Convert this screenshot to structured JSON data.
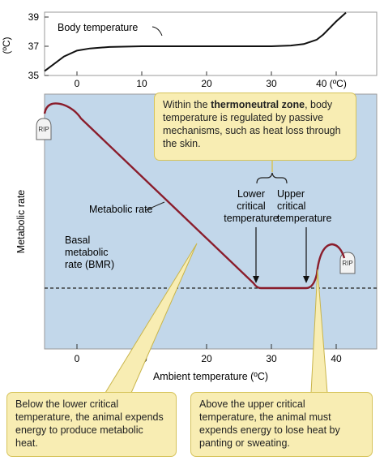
{
  "top_chart": {
    "y_unit": "(ºC)",
    "y_ticks": [
      "39",
      "37",
      "35"
    ],
    "x_ticks": [
      "0",
      "10",
      "20",
      "30",
      "40 (ºC)"
    ],
    "curve_label": "Body temperature",
    "series": {
      "x": [
        -5,
        -2,
        0,
        2,
        5,
        10,
        20,
        30,
        33,
        35,
        37,
        38,
        40,
        41.5
      ],
      "y": [
        35.3,
        36.3,
        36.7,
        36.85,
        36.95,
        37,
        37,
        37,
        37.05,
        37.15,
        37.45,
        37.8,
        38.7,
        39.3
      ]
    }
  },
  "main_chart": {
    "y_label": "Metabolic rate",
    "x_label": "Ambient temperature (ºC)",
    "x_ticks": [
      "0",
      "10",
      "20",
      "30",
      "40"
    ],
    "metabolic_label": "Metabolic rate",
    "bmr_label_lines": [
      "Basal",
      "metabolic",
      "rate (BMR)"
    ],
    "lower_label_lines": [
      "Lower",
      "critical",
      "temperature"
    ],
    "upper_label_lines": [
      "Upper",
      "critical",
      "temperature"
    ],
    "rip_text": "RIP",
    "colors": {
      "panel": "#c2d7ea",
      "curve": "#8a1d2c",
      "callout_fill": "#f8edb3",
      "callout_border": "#d6c35a"
    }
  },
  "callouts": {
    "tnz_before": "Within the ",
    "tnz_bold": "thermoneutral zone",
    "tnz_after": ", body temperature is regulated by passive mechanisms, such as heat loss through the skin.",
    "below": "Below the lower critical temperature, the animal expends energy to produce metabolic heat.",
    "above": "Above the upper critical temperature, the animal must expends energy to lose heat by panting or sweating."
  }
}
